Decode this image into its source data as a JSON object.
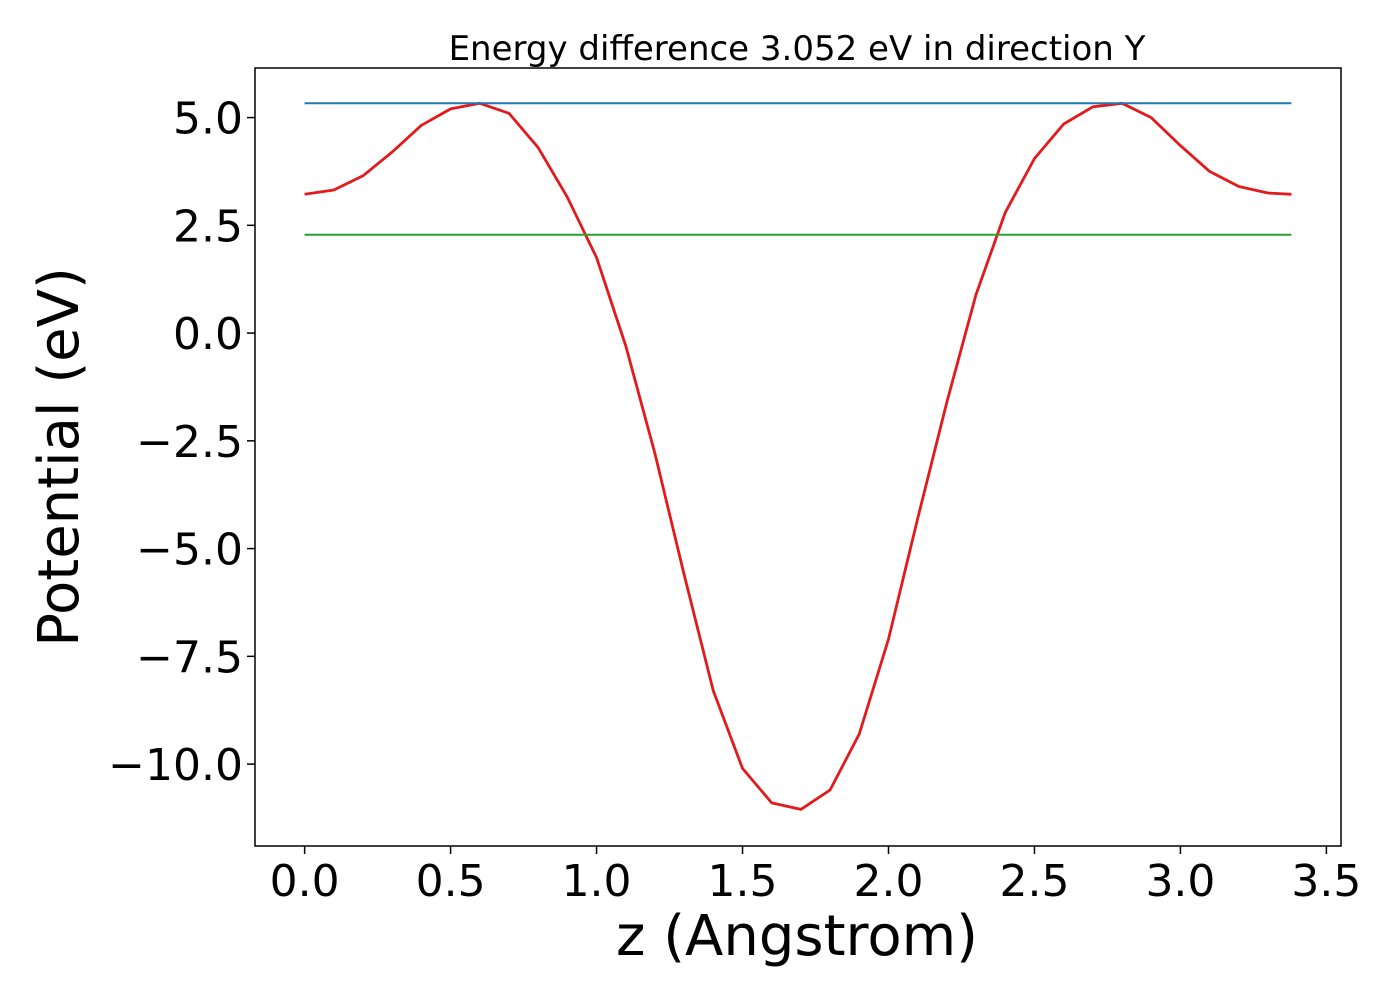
{
  "chart_data": {
    "type": "line",
    "title": "Energy difference 3.052 eV in direction Y",
    "xlabel": "z (Angstrom)",
    "ylabel": "Potential (eV)",
    "xlim": [
      -0.17,
      3.55
    ],
    "ylim": [
      -11.9,
      6.15
    ],
    "xticks": [
      0.0,
      0.5,
      1.0,
      1.5,
      2.0,
      2.5,
      3.0,
      3.5
    ],
    "xtick_labels": [
      "0.0",
      "0.5",
      "1.0",
      "1.5",
      "2.0",
      "2.5",
      "3.0",
      "3.5"
    ],
    "yticks": [
      5.0,
      2.5,
      0.0,
      -2.5,
      -5.0,
      -7.5,
      -10.0
    ],
    "ytick_labels": [
      "5.0",
      "2.5",
      "0.0",
      "−2.5",
      "−5.0",
      "−7.5",
      "−10.0"
    ],
    "grid": false,
    "legend": "none",
    "series": [
      {
        "color": "#e31a1c",
        "x": [
          0.0,
          0.1,
          0.2,
          0.3,
          0.4,
          0.5,
          0.6,
          0.7,
          0.8,
          0.9,
          1.0,
          1.1,
          1.2,
          1.3,
          1.4,
          1.5,
          1.6,
          1.7,
          1.8,
          1.9,
          2.0,
          2.1,
          2.2,
          2.3,
          2.4,
          2.5,
          2.6,
          2.7,
          2.8,
          2.9,
          3.0,
          3.1,
          3.2,
          3.3,
          3.38
        ],
        "y": [
          3.22,
          3.32,
          3.65,
          4.2,
          4.82,
          5.2,
          5.33,
          5.1,
          4.3,
          3.15,
          1.75,
          -0.3,
          -2.8,
          -5.6,
          -8.3,
          -10.1,
          -10.9,
          -11.05,
          -10.6,
          -9.3,
          -7.1,
          -4.3,
          -1.6,
          0.9,
          2.8,
          4.05,
          4.85,
          5.25,
          5.33,
          5.0,
          4.35,
          3.75,
          3.4,
          3.25,
          3.22
        ]
      },
      {
        "color": "#1f77b4",
        "x": [
          0.0,
          3.38
        ],
        "y": [
          5.33,
          5.33
        ]
      },
      {
        "color": "#2ca02c",
        "x": [
          0.0,
          3.38
        ],
        "y": [
          2.28,
          2.28
        ]
      }
    ]
  }
}
